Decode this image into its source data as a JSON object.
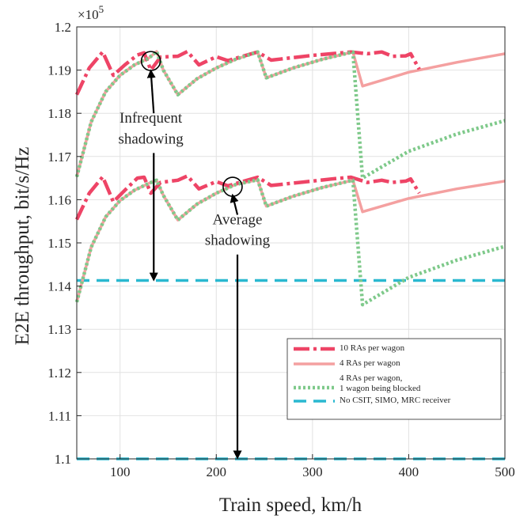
{
  "chart_data": {
    "type": "line",
    "xlabel": "Train speed, km/h",
    "ylabel": "E2E throughput, bit/s/Hz",
    "y_multiplier": "×10",
    "y_exponent": "5",
    "xlim": [
      55,
      500
    ],
    "ylim": [
      1.1,
      1.2
    ],
    "x_ticks": [
      "100",
      "200",
      "300",
      "400",
      "500"
    ],
    "x_tick_values": [
      100,
      200,
      300,
      400,
      500
    ],
    "y_ticks": [
      "1.1",
      "1.11",
      "1.12",
      "1.13",
      "1.14",
      "1.15",
      "1.16",
      "1.17",
      "1.18",
      "1.19",
      "1.2"
    ],
    "y_tick_values": [
      1.1,
      1.11,
      1.12,
      1.13,
      1.14,
      1.15,
      1.16,
      1.17,
      1.18,
      1.19,
      1.2
    ],
    "grid": true,
    "legend_position": "bottom-right",
    "series": [
      {
        "name": "10 RAs per wagon",
        "color": "#ee4466",
        "style": "dash-dot",
        "groups": [
          [
            [
              55,
              1.1843
            ],
            [
              68,
              1.1905
            ],
            [
              82,
              1.1942
            ],
            [
              93,
              1.1888
            ],
            [
              105,
              1.1912
            ],
            [
              118,
              1.1935
            ],
            [
              125,
              1.194
            ],
            [
              132,
              1.19
            ],
            [
              142,
              1.193
            ],
            [
              160,
              1.1932
            ],
            [
              170,
              1.1943
            ],
            [
              182,
              1.1912
            ],
            [
              200,
              1.1931
            ],
            [
              212,
              1.1922
            ],
            [
              243,
              1.1942
            ],
            [
              257,
              1.1923
            ],
            [
              300,
              1.1934
            ],
            [
              320,
              1.1938
            ],
            [
              340,
              1.1942
            ],
            [
              357,
              1.1938
            ],
            [
              372,
              1.1942
            ],
            [
              383,
              1.1932
            ],
            [
              397,
              1.1933
            ],
            [
              402,
              1.1938
            ],
            [
              411,
              1.1902
            ]
          ],
          [
            [
              55,
              1.1554
            ],
            [
              68,
              1.1615
            ],
            [
              82,
              1.1653
            ],
            [
              93,
              1.1595
            ],
            [
              105,
              1.1622
            ],
            [
              118,
              1.165
            ],
            [
              125,
              1.1652
            ],
            [
              132,
              1.1615
            ],
            [
              142,
              1.164
            ],
            [
              160,
              1.1645
            ],
            [
              170,
              1.1655
            ],
            [
              182,
              1.1625
            ],
            [
              200,
              1.1642
            ],
            [
              212,
              1.1632
            ],
            [
              243,
              1.1652
            ],
            [
              257,
              1.1633
            ],
            [
              300,
              1.1643
            ],
            [
              320,
              1.1648
            ],
            [
              340,
              1.1652
            ],
            [
              357,
              1.164
            ],
            [
              372,
              1.1645
            ],
            [
              383,
              1.164
            ],
            [
              397,
              1.1643
            ],
            [
              402,
              1.1648
            ],
            [
              411,
              1.1615
            ]
          ]
        ]
      },
      {
        "name": "4 RAs per wagon",
        "color": "#f4a0a0",
        "style": "solid",
        "groups": [
          [
            [
              55,
              1.1653
            ],
            [
              70,
              1.178
            ],
            [
              85,
              1.185
            ],
            [
              100,
              1.1888
            ],
            [
              115,
              1.1912
            ],
            [
              130,
              1.1928
            ],
            [
              138,
              1.1943
            ],
            [
              145,
              1.19
            ],
            [
              160,
              1.1843
            ],
            [
              180,
              1.188
            ],
            [
              200,
              1.1905
            ],
            [
              220,
              1.1925
            ],
            [
              243,
              1.1942
            ],
            [
              252,
              1.1882
            ],
            [
              280,
              1.1905
            ],
            [
              310,
              1.1925
            ],
            [
              342,
              1.1942
            ],
            [
              352,
              1.1863
            ],
            [
              400,
              1.1895
            ],
            [
              450,
              1.1918
            ],
            [
              500,
              1.1938
            ]
          ],
          [
            [
              55,
              1.1363
            ],
            [
              70,
              1.149
            ],
            [
              85,
              1.156
            ],
            [
              100,
              1.1598
            ],
            [
              115,
              1.1622
            ],
            [
              130,
              1.1638
            ],
            [
              138,
              1.1645
            ],
            [
              145,
              1.161
            ],
            [
              160,
              1.1553
            ],
            [
              180,
              1.159
            ],
            [
              200,
              1.1615
            ],
            [
              220,
              1.1635
            ],
            [
              243,
              1.1646
            ],
            [
              252,
              1.1585
            ],
            [
              280,
              1.1608
            ],
            [
              310,
              1.1628
            ],
            [
              342,
              1.1645
            ],
            [
              352,
              1.1572
            ],
            [
              400,
              1.1603
            ],
            [
              450,
              1.1625
            ],
            [
              500,
              1.1643
            ]
          ]
        ]
      },
      {
        "name": "4 RAs per wagon, 1 wagon being blocked",
        "legend_lines": [
          "4 RAs per wagon,",
          "1 wagon being blocked"
        ],
        "color": "#7ec98a",
        "style": "dotted",
        "groups": [
          [
            [
              55,
              1.1653
            ],
            [
              70,
              1.178
            ],
            [
              85,
              1.185
            ],
            [
              100,
              1.1888
            ],
            [
              115,
              1.1912
            ],
            [
              130,
              1.1928
            ],
            [
              138,
              1.1943
            ],
            [
              145,
              1.19
            ],
            [
              160,
              1.1843
            ],
            [
              180,
              1.188
            ],
            [
              200,
              1.1905
            ],
            [
              220,
              1.1925
            ],
            [
              243,
              1.1942
            ],
            [
              252,
              1.1882
            ],
            [
              280,
              1.1905
            ],
            [
              310,
              1.1925
            ],
            [
              342,
              1.1942
            ],
            [
              352,
              1.165
            ],
            [
              400,
              1.1712
            ],
            [
              450,
              1.1752
            ],
            [
              500,
              1.1783
            ]
          ],
          [
            [
              55,
              1.1363
            ],
            [
              70,
              1.149
            ],
            [
              85,
              1.156
            ],
            [
              100,
              1.1598
            ],
            [
              115,
              1.1622
            ],
            [
              130,
              1.1638
            ],
            [
              138,
              1.1645
            ],
            [
              145,
              1.161
            ],
            [
              160,
              1.1553
            ],
            [
              180,
              1.159
            ],
            [
              200,
              1.1615
            ],
            [
              220,
              1.1635
            ],
            [
              243,
              1.1646
            ],
            [
              252,
              1.1585
            ],
            [
              280,
              1.1608
            ],
            [
              310,
              1.1628
            ],
            [
              342,
              1.1645
            ],
            [
              352,
              1.1357
            ],
            [
              400,
              1.142
            ],
            [
              450,
              1.146
            ],
            [
              500,
              1.1492
            ]
          ]
        ]
      },
      {
        "name": "No CSIT, SIMO, MRC receiver",
        "color": "#2ab8d0",
        "style": "dashed",
        "groups": [
          [
            [
              55,
              1.1413
            ],
            [
              500,
              1.1413
            ]
          ],
          [
            [
              55,
              1.1
            ],
            [
              500,
              1.1
            ]
          ]
        ]
      }
    ],
    "annotations": [
      {
        "lines": [
          "Infrequent",
          "shadowing"
        ],
        "text_x": 132,
        "text_y": [
          1.1778,
          1.173
        ],
        "circle": [
          132,
          1.1921
        ],
        "arrows": [
          {
            "from": [
              135,
              1.18
            ],
            "to": [
              132,
              1.1898
            ]
          },
          {
            "from": [
              135,
              1.1708
            ],
            "to": [
              135,
              1.1415
            ]
          }
        ]
      },
      {
        "lines": [
          "Average",
          "shadowing"
        ],
        "text_x": 222,
        "text_y": [
          1.1543,
          1.1495
        ],
        "circle": [
          217,
          1.163
        ],
        "arrows": [
          {
            "from": [
              222,
              1.1565
            ],
            "to": [
              217,
              1.161
            ]
          },
          {
            "from": [
              222,
              1.1473
            ],
            "to": [
              222,
              1.1003
            ]
          }
        ]
      }
    ]
  }
}
